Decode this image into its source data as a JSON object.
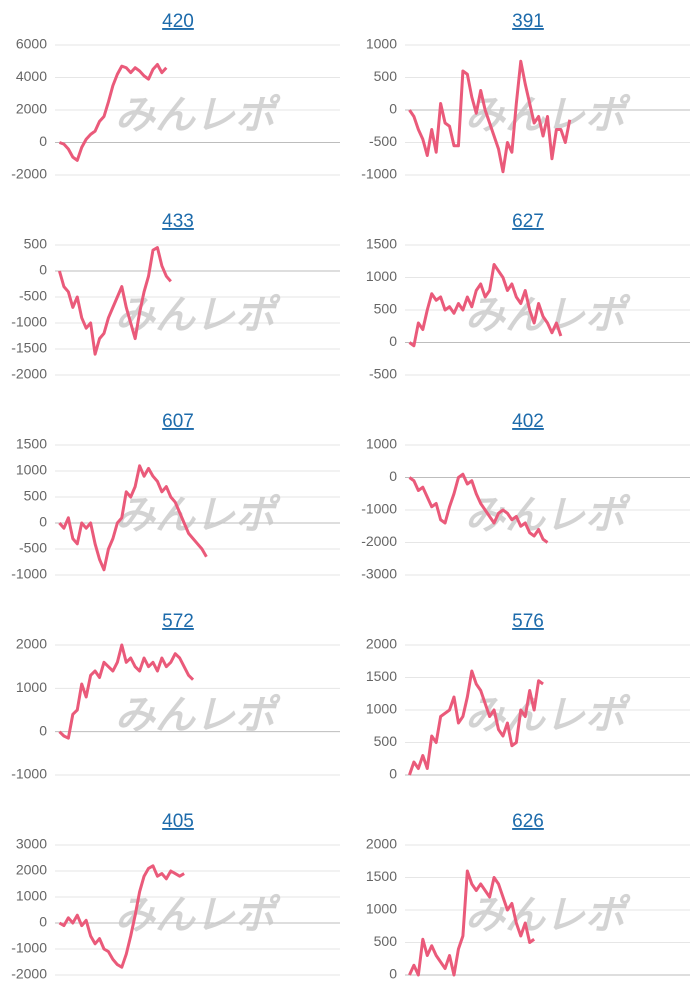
{
  "watermark": "みんレポ",
  "chart_data": [
    {
      "type": "line",
      "title": "420",
      "color": "#ea5a7a",
      "xlim": [
        0,
        64
      ],
      "ylim": [
        -2000,
        6000
      ],
      "yticks": [
        -2000,
        0,
        2000,
        4000,
        6000
      ],
      "x": [
        1,
        2,
        3,
        4,
        5,
        6,
        7,
        8,
        9,
        10,
        11,
        12,
        13,
        14,
        15,
        16,
        17,
        18,
        19,
        20,
        21,
        22,
        23,
        24,
        25
      ],
      "values": [
        0,
        -100,
        -400,
        -900,
        -1100,
        -300,
        200,
        500,
        700,
        1300,
        1600,
        2500,
        3500,
        4200,
        4700,
        4600,
        4300,
        4600,
        4400,
        4100,
        3900,
        4500,
        4800,
        4300,
        4600
      ]
    },
    {
      "type": "line",
      "title": "391",
      "color": "#ea5a7a",
      "xlim": [
        0,
        64
      ],
      "ylim": [
        -1000,
        1000
      ],
      "yticks": [
        -1000,
        -500,
        0,
        500,
        1000
      ],
      "x": [
        1,
        2,
        3,
        4,
        5,
        6,
        7,
        8,
        9,
        10,
        11,
        12,
        13,
        14,
        15,
        16,
        17,
        18,
        19,
        20,
        21,
        22,
        23,
        24,
        25,
        26,
        27,
        28,
        29,
        30,
        31,
        32,
        33,
        34,
        35,
        36,
        37
      ],
      "values": [
        0,
        -100,
        -300,
        -450,
        -700,
        -300,
        -650,
        100,
        -200,
        -250,
        -550,
        -550,
        600,
        550,
        200,
        -50,
        300,
        0,
        -200,
        -400,
        -600,
        -950,
        -500,
        -650,
        100,
        750,
        400,
        100,
        -200,
        -100,
        -400,
        -100,
        -750,
        -300,
        -300,
        -500,
        -150
      ]
    },
    {
      "type": "line",
      "title": "433",
      "color": "#ea5a7a",
      "xlim": [
        0,
        64
      ],
      "ylim": [
        -2000,
        500
      ],
      "yticks": [
        -2000,
        -1500,
        -1000,
        -500,
        0,
        500
      ],
      "x": [
        1,
        2,
        3,
        4,
        5,
        6,
        7,
        8,
        9,
        10,
        11,
        12,
        13,
        14,
        15,
        16,
        17,
        18,
        19,
        20,
        21,
        22,
        23,
        24,
        25,
        26
      ],
      "values": [
        0,
        -300,
        -400,
        -700,
        -500,
        -900,
        -1100,
        -1000,
        -1600,
        -1300,
        -1200,
        -900,
        -700,
        -500,
        -300,
        -700,
        -1000,
        -1300,
        -800,
        -400,
        -100,
        400,
        450,
        100,
        -100,
        -200
      ]
    },
    {
      "type": "line",
      "title": "627",
      "color": "#ea5a7a",
      "xlim": [
        0,
        64
      ],
      "ylim": [
        -500,
        1500
      ],
      "yticks": [
        -500,
        0,
        500,
        1000,
        1500
      ],
      "x": [
        1,
        2,
        3,
        4,
        5,
        6,
        7,
        8,
        9,
        10,
        11,
        12,
        13,
        14,
        15,
        16,
        17,
        18,
        19,
        20,
        21,
        22,
        23,
        24,
        25,
        26,
        27,
        28,
        29,
        30,
        31,
        32,
        33,
        34,
        35
      ],
      "values": [
        0,
        -50,
        300,
        200,
        500,
        750,
        650,
        700,
        500,
        550,
        450,
        600,
        500,
        700,
        550,
        800,
        900,
        700,
        800,
        1200,
        1100,
        1000,
        800,
        900,
        700,
        600,
        800,
        500,
        300,
        600,
        400,
        300,
        150,
        300,
        100
      ]
    },
    {
      "type": "line",
      "title": "607",
      "color": "#ea5a7a",
      "xlim": [
        0,
        64
      ],
      "ylim": [
        -1000,
        1500
      ],
      "yticks": [
        -1000,
        -500,
        0,
        500,
        1000,
        1500
      ],
      "x": [
        1,
        2,
        3,
        4,
        5,
        6,
        7,
        8,
        9,
        10,
        11,
        12,
        13,
        14,
        15,
        16,
        17,
        18,
        19,
        20,
        21,
        22,
        23,
        24,
        25,
        26,
        27,
        28,
        29,
        30,
        31,
        32,
        33,
        34
      ],
      "values": [
        0,
        -100,
        100,
        -300,
        -400,
        0,
        -100,
        0,
        -400,
        -700,
        -900,
        -500,
        -300,
        0,
        100,
        600,
        500,
        700,
        1100,
        900,
        1050,
        900,
        800,
        600,
        700,
        500,
        400,
        200,
        0,
        -200,
        -300,
        -400,
        -500,
        -650
      ]
    },
    {
      "type": "line",
      "title": "402",
      "color": "#ea5a7a",
      "xlim": [
        0,
        64
      ],
      "ylim": [
        -3000,
        1000
      ],
      "yticks": [
        -3000,
        -2000,
        -1000,
        0,
        1000
      ],
      "x": [
        1,
        2,
        3,
        4,
        5,
        6,
        7,
        8,
        9,
        10,
        11,
        12,
        13,
        14,
        15,
        16,
        17,
        18,
        19,
        20,
        21,
        22,
        23,
        24,
        25,
        26,
        27,
        28,
        29,
        30,
        31,
        32
      ],
      "values": [
        0,
        -100,
        -400,
        -300,
        -600,
        -900,
        -800,
        -1300,
        -1400,
        -900,
        -500,
        0,
        100,
        -200,
        -100,
        -500,
        -800,
        -1000,
        -1200,
        -1400,
        -1100,
        -1000,
        -1100,
        -1300,
        -1200,
        -1500,
        -1400,
        -1700,
        -1800,
        -1600,
        -1900,
        -2000
      ]
    },
    {
      "type": "line",
      "title": "572",
      "color": "#ea5a7a",
      "xlim": [
        0,
        64
      ],
      "ylim": [
        -1000,
        2000
      ],
      "yticks": [
        -1000,
        0,
        1000,
        2000
      ],
      "x": [
        1,
        2,
        3,
        4,
        5,
        6,
        7,
        8,
        9,
        10,
        11,
        12,
        13,
        14,
        15,
        16,
        17,
        18,
        19,
        20,
        21,
        22,
        23,
        24,
        25,
        26,
        27,
        28,
        29,
        30,
        31
      ],
      "values": [
        0,
        -100,
        -150,
        400,
        500,
        1100,
        800,
        1300,
        1400,
        1250,
        1600,
        1500,
        1400,
        1600,
        2000,
        1600,
        1700,
        1500,
        1400,
        1700,
        1500,
        1600,
        1400,
        1700,
        1500,
        1600,
        1800,
        1700,
        1500,
        1300,
        1200
      ]
    },
    {
      "type": "line",
      "title": "576",
      "color": "#ea5a7a",
      "xlim": [
        0,
        64
      ],
      "ylim": [
        0,
        2000
      ],
      "yticks": [
        0,
        500,
        1000,
        1500,
        2000
      ],
      "x": [
        1,
        2,
        3,
        4,
        5,
        6,
        7,
        8,
        9,
        10,
        11,
        12,
        13,
        14,
        15,
        16,
        17,
        18,
        19,
        20,
        21,
        22,
        23,
        24,
        25,
        26,
        27,
        28,
        29,
        30,
        31
      ],
      "values": [
        0,
        200,
        100,
        300,
        100,
        600,
        500,
        900,
        950,
        1000,
        1200,
        800,
        900,
        1200,
        1600,
        1400,
        1300,
        1100,
        900,
        1000,
        700,
        600,
        800,
        450,
        500,
        1000,
        900,
        1300,
        1000,
        1450,
        1400
      ]
    },
    {
      "type": "line",
      "title": "405",
      "color": "#ea5a7a",
      "xlim": [
        0,
        64
      ],
      "ylim": [
        -2000,
        3000
      ],
      "yticks": [
        -2000,
        -1000,
        0,
        1000,
        2000,
        3000
      ],
      "x": [
        1,
        2,
        3,
        4,
        5,
        6,
        7,
        8,
        9,
        10,
        11,
        12,
        13,
        14,
        15,
        16,
        17,
        18,
        19,
        20,
        21,
        22,
        23,
        24,
        25,
        26,
        27,
        28,
        29
      ],
      "values": [
        0,
        -100,
        200,
        0,
        300,
        -100,
        100,
        -500,
        -800,
        -600,
        -1000,
        -1100,
        -1400,
        -1600,
        -1700,
        -1200,
        -500,
        300,
        1200,
        1800,
        2100,
        2200,
        1800,
        1900,
        1700,
        2000,
        1900,
        1800,
        1900
      ]
    },
    {
      "type": "line",
      "title": "626",
      "color": "#ea5a7a",
      "xlim": [
        0,
        64
      ],
      "ylim": [
        0,
        2000
      ],
      "yticks": [
        0,
        500,
        1000,
        1500,
        2000
      ],
      "x": [
        1,
        2,
        3,
        4,
        5,
        6,
        7,
        8,
        9,
        10,
        11,
        12,
        13,
        14,
        15,
        16,
        17,
        18,
        19,
        20,
        21,
        22,
        23,
        24,
        25,
        26,
        27,
        28,
        29
      ],
      "values": [
        0,
        150,
        0,
        550,
        300,
        450,
        300,
        200,
        100,
        300,
        0,
        400,
        600,
        1600,
        1400,
        1300,
        1400,
        1300,
        1200,
        1500,
        1400,
        1200,
        1000,
        1100,
        800,
        600,
        800,
        500,
        550
      ]
    }
  ]
}
